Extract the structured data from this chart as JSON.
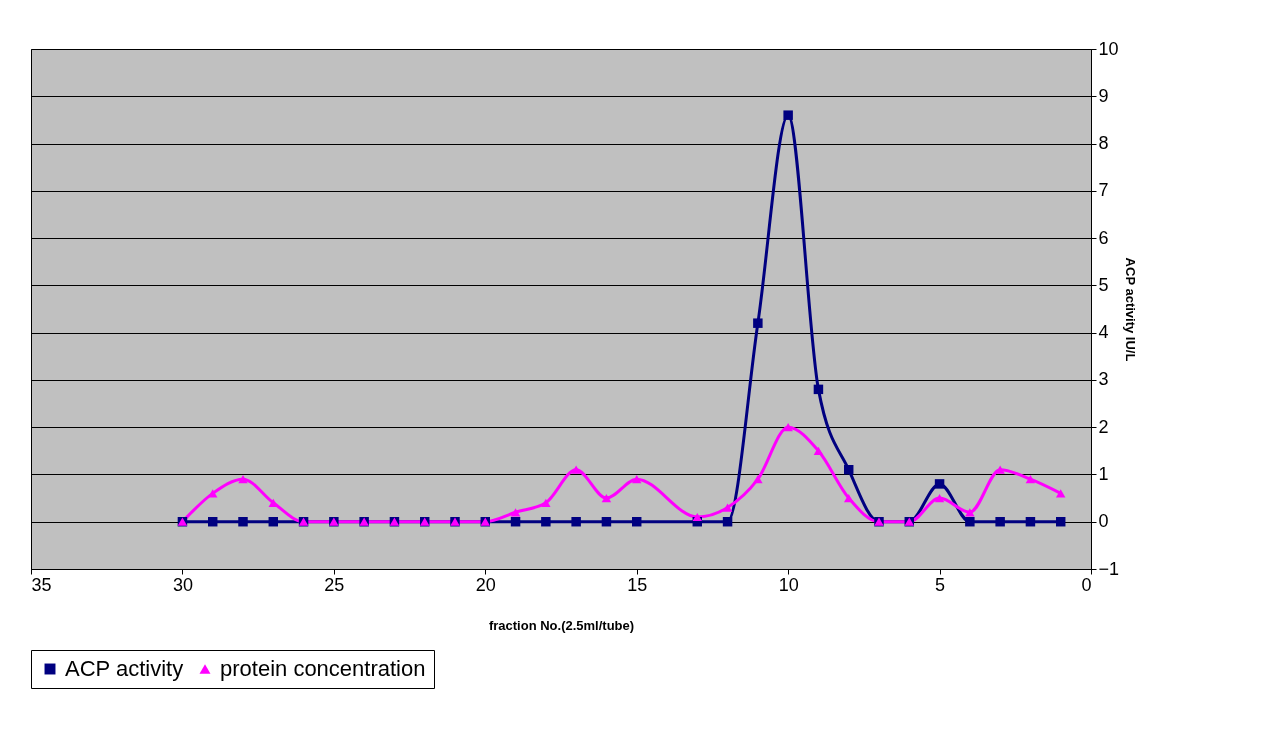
{
  "chart_data": {
    "type": "line",
    "xlabel": "fraction No.(2.5ml/tube)",
    "ylabel": "ACP activity IU/L",
    "xlim": [
      35,
      0
    ],
    "xticks": [
      35,
      30,
      25,
      20,
      15,
      10,
      5,
      0
    ],
    "ylim": [
      -1,
      10
    ],
    "yticks": [
      -1,
      0,
      1,
      2,
      3,
      4,
      5,
      6,
      7,
      8,
      9,
      10
    ],
    "grid": "y",
    "legend": "bottom",
    "series": [
      {
        "name": "ACP activity",
        "color": "#000080",
        "marker": "square",
        "x": [
          30,
          29,
          28,
          27,
          26,
          25,
          24,
          23,
          22,
          21,
          20,
          19,
          18,
          17,
          16,
          15,
          13,
          12,
          11,
          10,
          9,
          8,
          7,
          6,
          5,
          4,
          3,
          2,
          1
        ],
        "values": [
          0,
          0,
          0,
          0,
          0,
          0,
          0,
          0,
          0,
          0,
          0,
          0,
          0,
          0,
          0,
          0,
          0,
          0,
          4.2,
          8.6,
          2.8,
          1.1,
          0,
          0,
          0.8,
          0,
          0,
          0,
          0
        ]
      },
      {
        "name": "protein concentration",
        "color": "#ff00ff",
        "marker": "triangle",
        "x": [
          30,
          29,
          28,
          27,
          26,
          25,
          24,
          23,
          22,
          21,
          20,
          19,
          18,
          17,
          16,
          15,
          13,
          12,
          11,
          10,
          9,
          8,
          7,
          6,
          5,
          4,
          3,
          2,
          1
        ],
        "values": [
          0,
          0.6,
          0.9,
          0.4,
          0,
          0,
          0,
          0,
          0,
          0,
          0,
          0.2,
          0.4,
          1.1,
          0.5,
          0.9,
          0.1,
          0.3,
          0.9,
          2.0,
          1.5,
          0.5,
          0,
          0,
          0.5,
          0.2,
          1.1,
          0.9,
          0.6
        ]
      }
    ]
  }
}
